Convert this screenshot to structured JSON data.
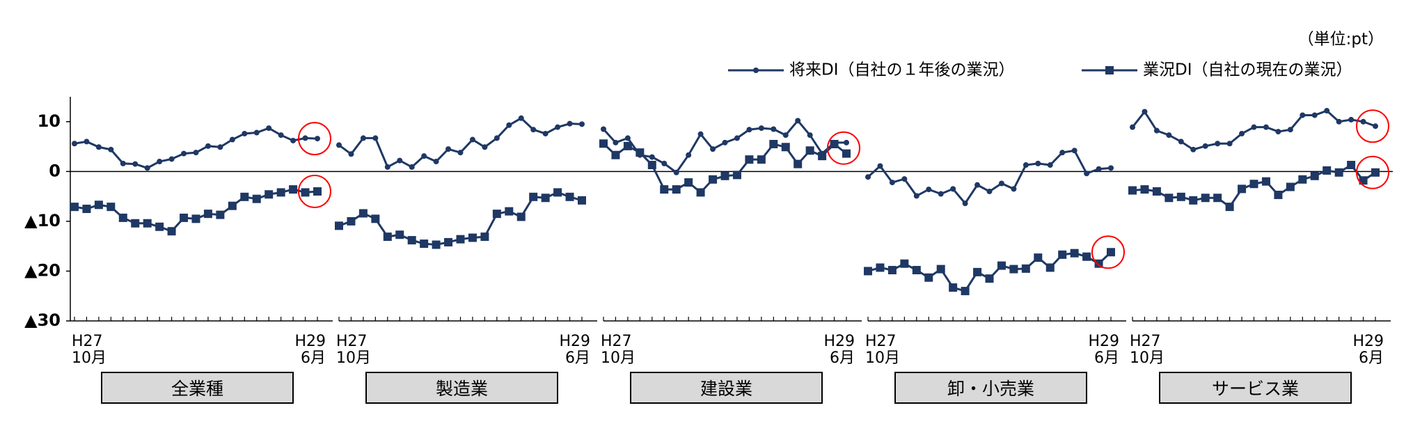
{
  "chart_data": {
    "type": "line",
    "unit": "（単位:pt）",
    "series": [
      {
        "name": "将来DI（自社の１年後の業況）",
        "color": "#1f3864",
        "marker": "circle"
      },
      {
        "name": "業況DI（自社の現在の業況）",
        "color": "#1f3864",
        "marker": "square"
      }
    ],
    "categories": [
      "H27\n10月",
      null,
      null,
      null,
      null,
      null,
      null,
      null,
      null,
      null,
      null,
      null,
      null,
      null,
      null,
      null,
      null,
      null,
      null,
      null,
      "H29\n6月"
    ],
    "ylim": [
      -30,
      15
    ],
    "yticks": [
      10,
      0,
      {
        "value": -10,
        "label": "▲10"
      },
      {
        "value": -20,
        "label": "▲20"
      },
      {
        "value": -30,
        "label": "▲30"
      }
    ],
    "highlight_color": "#ff0000",
    "panels": [
      {
        "label": "全業種",
        "highlight": [
          [
            0
          ],
          [
            1
          ]
        ],
        "series": [
          {
            "values": [
              5.6,
              6.0,
              4.9,
              4.4,
              1.6,
              1.5,
              0.7,
              2.0,
              2.5,
              3.6,
              3.8,
              5.1,
              4.9,
              6.4,
              7.6,
              7.8,
              8.7,
              7.3,
              6.2,
              6.7,
              6.6
            ]
          },
          {
            "values": [
              -7.1,
              -7.5,
              -6.7,
              -7.1,
              -9.3,
              -10.4,
              -10.4,
              -11.1,
              -12.0,
              -9.3,
              -9.5,
              -8.5,
              -8.7,
              -6.9,
              -5.1,
              -5.5,
              -4.6,
              -4.2,
              -3.6,
              -4.2,
              -4.0
            ]
          }
        ]
      },
      {
        "label": "製造業",
        "highlight": [],
        "series": [
          {
            "values": [
              5.3,
              3.5,
              6.7,
              6.7,
              0.9,
              2.2,
              0.9,
              3.1,
              2.0,
              4.5,
              3.8,
              6.4,
              4.9,
              6.7,
              9.3,
              10.7,
              8.4,
              7.6,
              8.9,
              9.6,
              9.5
            ]
          },
          {
            "values": [
              -10.9,
              -10.0,
              -8.4,
              -9.5,
              -13.1,
              -12.7,
              -13.8,
              -14.5,
              -14.7,
              -14.2,
              -13.6,
              -13.3,
              -13.1,
              -8.5,
              -8.0,
              -9.1,
              -5.1,
              -5.3,
              -4.2,
              -5.1,
              -5.8
            ]
          }
        ]
      },
      {
        "label": "建設業",
        "highlight": [
          [
            0,
            1
          ]
        ],
        "series": [
          {
            "values": [
              8.5,
              5.8,
              6.7,
              3.3,
              2.9,
              1.6,
              -0.2,
              3.3,
              7.5,
              4.5,
              5.8,
              6.7,
              8.4,
              8.7,
              8.5,
              7.3,
              10.2,
              7.3,
              3.6,
              5.8,
              5.8
            ]
          },
          {
            "values": [
              5.6,
              3.3,
              5.1,
              3.8,
              1.3,
              -3.6,
              -3.6,
              -2.2,
              -4.2,
              -1.6,
              -0.9,
              -0.7,
              2.4,
              2.4,
              5.5,
              4.9,
              1.5,
              4.2,
              3.1,
              5.5,
              3.6
            ]
          }
        ]
      },
      {
        "label": "卸・小売業",
        "highlight": [
          [
            1
          ]
        ],
        "series": [
          {
            "values": [
              -1.1,
              1.1,
              -2.2,
              -1.5,
              -4.9,
              -3.6,
              -4.5,
              -3.5,
              -6.4,
              -2.7,
              -4.0,
              -2.4,
              -3.5,
              1.3,
              1.6,
              1.3,
              3.8,
              4.2,
              -0.4,
              0.5,
              0.7
            ]
          },
          {
            "values": [
              -20.0,
              -19.3,
              -19.8,
              -18.5,
              -19.8,
              -21.3,
              -19.6,
              -23.3,
              -24.0,
              -20.2,
              -21.5,
              -18.9,
              -19.6,
              -19.5,
              -17.3,
              -19.3,
              -16.7,
              -16.4,
              -17.1,
              -18.5,
              -16.2
            ]
          }
        ]
      },
      {
        "label": "サービス業",
        "highlight": [
          [
            0
          ],
          [
            1
          ]
        ],
        "series": [
          {
            "values": [
              8.9,
              12.0,
              8.2,
              7.3,
              6.0,
              4.4,
              5.1,
              5.6,
              5.6,
              7.6,
              8.9,
              8.9,
              8.0,
              8.4,
              11.3,
              11.3,
              12.2,
              10.0,
              10.4,
              10.0,
              9.1
            ]
          },
          {
            "values": [
              -3.8,
              -3.6,
              -4.0,
              -5.3,
              -5.1,
              -5.8,
              -5.3,
              -5.3,
              -7.1,
              -3.5,
              -2.5,
              -2.0,
              -4.7,
              -3.1,
              -1.6,
              -0.9,
              0.2,
              -0.2,
              1.3,
              -1.8,
              -0.2
            ]
          }
        ]
      }
    ]
  }
}
